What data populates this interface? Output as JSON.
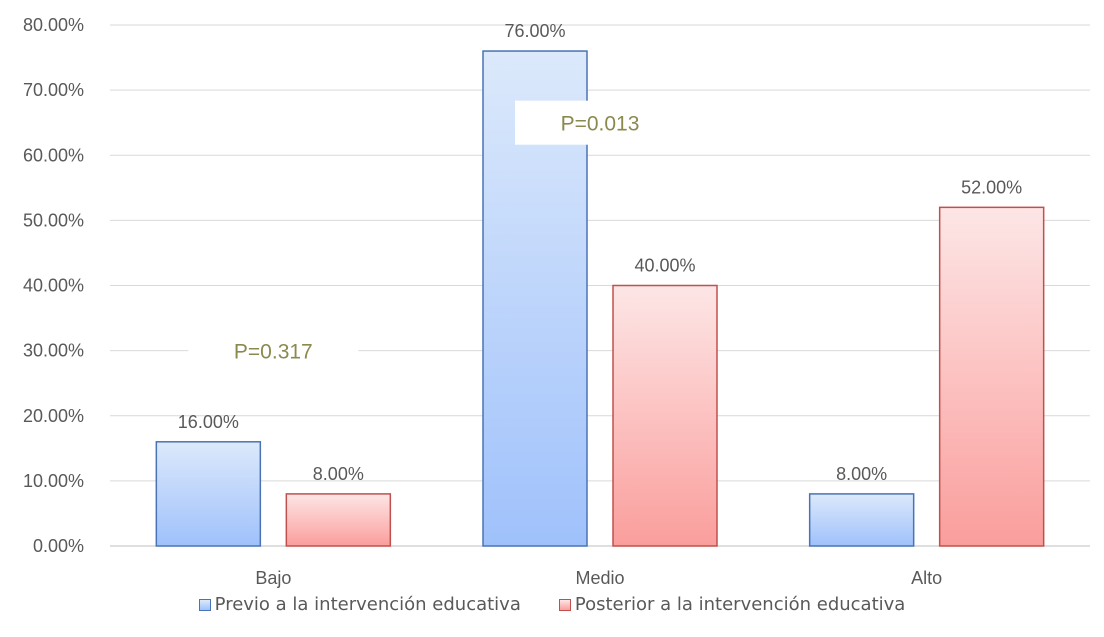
{
  "chart_data": {
    "type": "bar",
    "categories": [
      "Bajo",
      "Medio",
      "Alto"
    ],
    "series": [
      {
        "name": "Previo a la intervención educativa",
        "values": [
          16,
          76,
          8
        ],
        "labels": [
          "16.00%",
          "76.00%",
          "8.00%"
        ],
        "fill_top": "#dce9fb",
        "fill_bottom": "#9fc1fb",
        "stroke": "#4a73b5"
      },
      {
        "name": "Posterior a la intervención educativa",
        "values": [
          8,
          40,
          52
        ],
        "labels": [
          "8.00%",
          "40.00%",
          "52.00%"
        ],
        "fill_top": "#fde6e6",
        "fill_bottom": "#fa9e9c",
        "stroke": "#c0504d"
      }
    ],
    "ylim": [
      0,
      80
    ],
    "yticks": [
      "0.00%",
      "10.00%",
      "20.00%",
      "30.00%",
      "40.00%",
      "50.00%",
      "60.00%",
      "70.00%",
      "80.00%"
    ],
    "grid": true,
    "legend_position": "bottom",
    "annotations": [
      {
        "text": "P=0.317",
        "category": "Bajo",
        "value": 30
      },
      {
        "text": "P=0.013",
        "category": "Medio",
        "value": 65
      }
    ],
    "annotation_color": "#8b8a4e",
    "gridline_color": "#d9d9d9",
    "axis_color": "#bfbfbf"
  }
}
